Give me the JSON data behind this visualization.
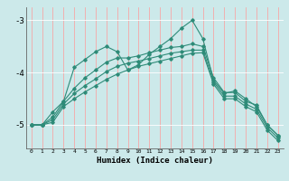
{
  "x": [
    0,
    1,
    2,
    3,
    4,
    5,
    6,
    7,
    8,
    9,
    10,
    11,
    12,
    13,
    14,
    15,
    16,
    17,
    18,
    19,
    20,
    21,
    22,
    23
  ],
  "line_main": [
    -5.0,
    -5.0,
    -4.75,
    -4.55,
    -3.9,
    -3.75,
    -3.6,
    -3.5,
    -3.6,
    -3.95,
    -3.85,
    -3.65,
    -3.5,
    -3.35,
    -3.15,
    -3.0,
    -3.35,
    -4.15,
    -4.4,
    -4.35,
    -4.5,
    -4.65,
    -5.0,
    -5.2
  ],
  "line2": [
    -5.0,
    -5.0,
    -4.85,
    -4.55,
    -4.3,
    -4.1,
    -3.95,
    -3.8,
    -3.72,
    -3.72,
    -3.68,
    -3.62,
    -3.57,
    -3.52,
    -3.5,
    -3.45,
    -3.5,
    -4.1,
    -4.38,
    -4.38,
    -4.55,
    -4.62,
    -5.0,
    -5.2
  ],
  "line3": [
    -5.0,
    -5.0,
    -4.9,
    -4.6,
    -4.4,
    -4.25,
    -4.12,
    -3.98,
    -3.88,
    -3.82,
    -3.78,
    -3.73,
    -3.68,
    -3.63,
    -3.6,
    -3.57,
    -3.57,
    -4.18,
    -4.45,
    -4.45,
    -4.6,
    -4.7,
    -5.05,
    -5.25
  ],
  "line4": [
    -5.0,
    -5.0,
    -4.95,
    -4.65,
    -4.5,
    -4.37,
    -4.25,
    -4.13,
    -4.03,
    -3.95,
    -3.88,
    -3.83,
    -3.78,
    -3.73,
    -3.68,
    -3.63,
    -3.62,
    -4.22,
    -4.5,
    -4.5,
    -4.65,
    -4.75,
    -5.1,
    -5.3
  ],
  "color": "#2e8b78",
  "bg_color": "#cce9ea",
  "xlabel": "Humidex (Indice chaleur)",
  "yticks": [
    -5,
    -4,
    -3
  ],
  "ylim": [
    -5.45,
    -2.75
  ],
  "xlim": [
    -0.5,
    23.5
  ]
}
